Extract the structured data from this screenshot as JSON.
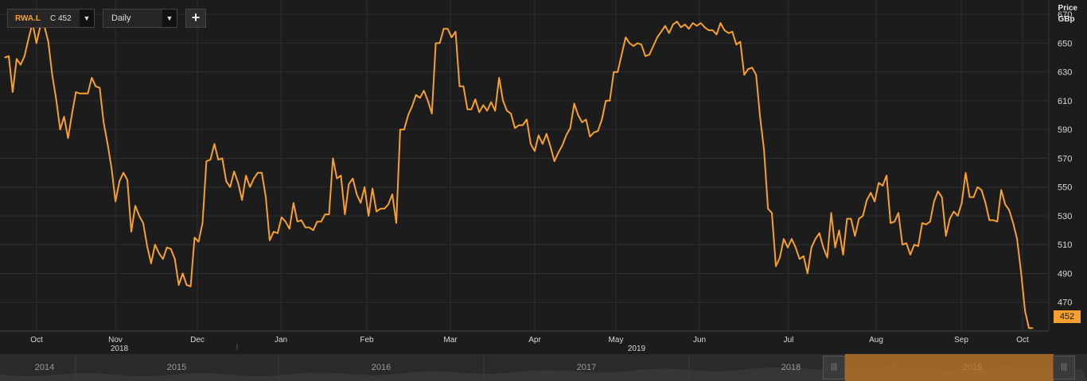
{
  "toolbar": {
    "ticker": "RWA.L",
    "close_label": "C 452",
    "period": "Daily",
    "add_label": "+",
    "dropdown_glyph": "▼"
  },
  "axis_unit": [
    "Price",
    "GBp"
  ],
  "last_price_tag": "452",
  "navigator": {
    "years": [
      "2014",
      "2015",
      "2016",
      "2017",
      "2018",
      "2019"
    ],
    "handle_glyph": "|||"
  },
  "colors": {
    "line": "#f5a030",
    "background": "#1c1c1c",
    "grid": "#2e2e2e"
  },
  "chart_data": {
    "type": "line",
    "series": [
      {
        "values": [
          640,
          641,
          616,
          639,
          635,
          641,
          653,
          664,
          650,
          662,
          662,
          651,
          628,
          611,
          590,
          599,
          584,
          601,
          616,
          615,
          615,
          615,
          626,
          620,
          619,
          595,
          580,
          563,
          540,
          554,
          560,
          555,
          519,
          537,
          530,
          525,
          509,
          497,
          510,
          504,
          500,
          508,
          507,
          500,
          482,
          490,
          482,
          481,
          515,
          512,
          525,
          568,
          569,
          580,
          569,
          570,
          554,
          550,
          561,
          553,
          541,
          558,
          550,
          556,
          560,
          560,
          543,
          513,
          519,
          518,
          529,
          526,
          521,
          539,
          526,
          527,
          522,
          522,
          520,
          526,
          526,
          531,
          531,
          570,
          556,
          558,
          531,
          552,
          556,
          545,
          539,
          550,
          530,
          549,
          533,
          535,
          535,
          538,
          545,
          525,
          590,
          590,
          600,
          606,
          614,
          612,
          617,
          610,
          601,
          650,
          650,
          660,
          660,
          654,
          658,
          620,
          620,
          604,
          604,
          611,
          602,
          607,
          603,
          609,
          603,
          626,
          610,
          603,
          601,
          591,
          593,
          593,
          597,
          580,
          575,
          586,
          580,
          587,
          578,
          568,
          574,
          579,
          586,
          591,
          608,
          600,
          595,
          597,
          585,
          588,
          589,
          597,
          610,
          610,
          630,
          630,
          642,
          654,
          650,
          648,
          650,
          649,
          641,
          642,
          648,
          654,
          658,
          662,
          657,
          663,
          665,
          661,
          663,
          660,
          664,
          662,
          664,
          661,
          659,
          659,
          656,
          664,
          659,
          657,
          658,
          649,
          651,
          628,
          632,
          633,
          628,
          599,
          576,
          535,
          532,
          495,
          501,
          514,
          508,
          514,
          508,
          500,
          502,
          490,
          508,
          514,
          518,
          508,
          501,
          532,
          508,
          520,
          503,
          528,
          528,
          516,
          528,
          530,
          541,
          546,
          540,
          553,
          551,
          558,
          525,
          526,
          532,
          510,
          511,
          503,
          510,
          509,
          525,
          524,
          526,
          540,
          547,
          543,
          516,
          528,
          533,
          530,
          539,
          560,
          543,
          543,
          550,
          548,
          539,
          527,
          527,
          526,
          548,
          538,
          534,
          525,
          514,
          491,
          464,
          452,
          452
        ]
      }
    ],
    "y_range": [
      450,
      680
    ],
    "y_ticks": [
      470,
      490,
      510,
      530,
      550,
      570,
      590,
      610,
      630,
      650,
      670
    ],
    "x_tick_labels": [
      "Oct",
      "Nov",
      "Dec",
      "Jan",
      "Feb",
      "Mar",
      "Apr",
      "May",
      "Jun",
      "Jul",
      "Aug",
      "Sep",
      "Oct"
    ],
    "x_year_labels": [
      "2018",
      "2019"
    ],
    "grid": true
  }
}
